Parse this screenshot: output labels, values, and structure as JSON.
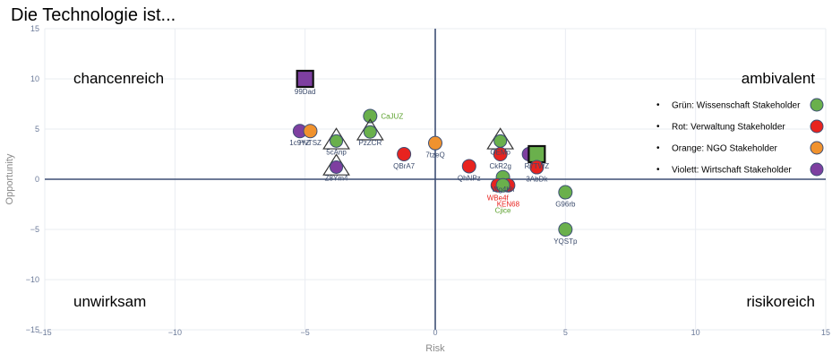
{
  "title": "Die Technologie ist...",
  "chart_data": {
    "type": "scatter",
    "xlabel": "Risk",
    "ylabel": "Opportunity",
    "xlim": [
      -15,
      15
    ],
    "ylim": [
      -15,
      15
    ],
    "xticks": [
      -15,
      -10,
      -5,
      0,
      5,
      10,
      15
    ],
    "yticks": [
      -15,
      -10,
      -5,
      0,
      5,
      10,
      15
    ],
    "grid": true,
    "quadrants": {
      "top_left": "chancenreich",
      "top_right": "ambivalent",
      "bottom_left": "unwirksam",
      "bottom_right": "risikoreich"
    },
    "legend_position": "right",
    "legend": [
      {
        "label": "Grün: Wissenschaft Stakeholder",
        "color": "#6ab04c"
      },
      {
        "label": "Rot: Verwaltung Stakeholder",
        "color": "#e8231f"
      },
      {
        "label": "Orange: NGO Stakeholder",
        "color": "#f0922e"
      },
      {
        "label": "Violett: Wirtschaft Stakeholder",
        "color": "#7e3fa0"
      }
    ],
    "points": [
      {
        "x": -5.0,
        "y": 10.0,
        "group": "Violett",
        "marker": "square",
        "label": "99Dad",
        "label_color": "#3a4a6b"
      },
      {
        "x": -5.2,
        "y": 4.8,
        "group": "Violett",
        "marker": "circle",
        "label": "1c9YZ",
        "label_color": "#3a4a6b"
      },
      {
        "x": -4.8,
        "y": 4.8,
        "group": "Orange",
        "marker": "circle",
        "label": "HvTSZ",
        "label_color": "#3a4a6b"
      },
      {
        "x": -3.8,
        "y": 3.9,
        "group": "Grün",
        "marker": "triangle",
        "label": "5cAnp",
        "label_color": "#3a4a6b"
      },
      {
        "x": -3.8,
        "y": 1.3,
        "group": "Violett",
        "marker": "triangle",
        "label": "Z8Ym4",
        "label_color": "#3a4a6b"
      },
      {
        "x": -2.5,
        "y": 6.3,
        "group": "Grün",
        "marker": "circle",
        "label": "CaJUZ",
        "label_color": "#5aa02c"
      },
      {
        "x": -2.5,
        "y": 4.8,
        "group": "Grün",
        "marker": "triangle",
        "label": "PzZCR",
        "label_color": "#3a4a6b"
      },
      {
        "x": -1.2,
        "y": 2.5,
        "group": "Rot",
        "marker": "circle",
        "label": "QBrA7",
        "label_color": "#3a4a6b"
      },
      {
        "x": 0.0,
        "y": 3.6,
        "group": "Orange",
        "marker": "circle",
        "label": "7tzeQ",
        "label_color": "#3a4a6b"
      },
      {
        "x": 1.3,
        "y": 1.3,
        "group": "Rot",
        "marker": "circle",
        "label": "QhNPz",
        "label_color": "#3a4a6b"
      },
      {
        "x": 2.5,
        "y": 3.9,
        "group": "Grün",
        "marker": "triangle",
        "label": "OEMo",
        "label_color": "#3a4a6b"
      },
      {
        "x": 2.5,
        "y": 2.5,
        "group": "Rot",
        "marker": "circle",
        "label": "CkR2g",
        "label_color": "#3a4a6b"
      },
      {
        "x": 2.6,
        "y": 0.2,
        "group": "Grün",
        "marker": "circle",
        "label": "Wg4bh",
        "label_color": "#3a4a6b"
      },
      {
        "x": 2.4,
        "y": -0.6,
        "group": "Rot",
        "marker": "circle",
        "label": "WBe4f",
        "label_color": "#e8231f"
      },
      {
        "x": 2.8,
        "y": -0.6,
        "group": "Rot",
        "marker": "circle",
        "label": "KEN68",
        "label_color": "#e8231f"
      },
      {
        "x": 2.6,
        "y": -0.6,
        "group": "Grün",
        "marker": "circle",
        "label": "Cjice",
        "label_color": "#5aa02c"
      },
      {
        "x": 3.6,
        "y": 2.5,
        "group": "Violett",
        "marker": "circle",
        "label": "",
        "label_color": "#3a4a6b"
      },
      {
        "x": 3.9,
        "y": 2.5,
        "group": "Grün",
        "marker": "square",
        "label": "R7TWZ",
        "label_color": "#3a4a6b"
      },
      {
        "x": 3.9,
        "y": 1.2,
        "group": "Rot",
        "marker": "circle",
        "label": "3AbDk",
        "label_color": "#3a4a6b"
      },
      {
        "x": 5.0,
        "y": -1.3,
        "group": "Grün",
        "marker": "circle",
        "label": "G96rb",
        "label_color": "#3a4a6b"
      },
      {
        "x": 5.0,
        "y": -5.0,
        "group": "Grün",
        "marker": "circle",
        "label": "YQSTp",
        "label_color": "#3a4a6b"
      }
    ]
  },
  "colors": {
    "Grün": "#6ab04c",
    "Rot": "#e8231f",
    "Orange": "#f0922e",
    "Violett": "#7e3fa0",
    "axis_line": "#3d4f75",
    "grid": "#e9ecf2"
  }
}
